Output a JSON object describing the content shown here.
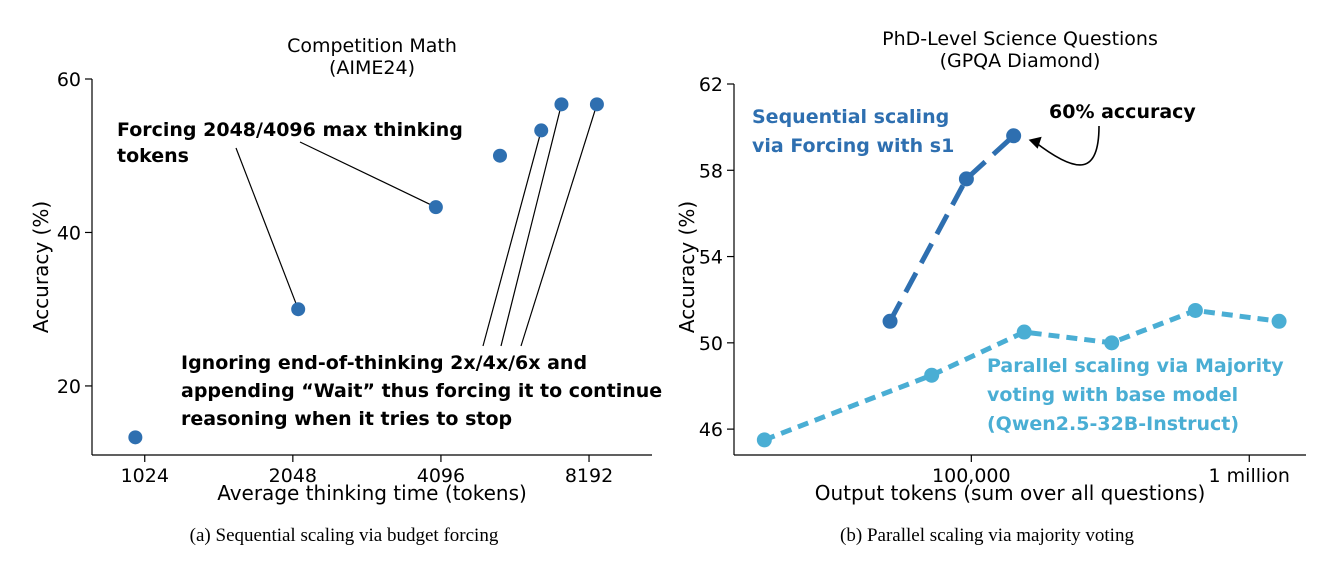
{
  "chart_data": [
    {
      "type": "scatter",
      "title": "Competition Math",
      "subtitle": "(AIME24)",
      "xlabel": "Average thinking time (tokens)",
      "ylabel": "Accuracy (%)",
      "x_scale": "log2",
      "x_ticks": [
        1024,
        2048,
        4096,
        8192
      ],
      "x_tick_labels": [
        "1024",
        "2048",
        "4096",
        "8192"
      ],
      "xlim": [
        800,
        11000
      ],
      "y_ticks": [
        20,
        40,
        60
      ],
      "y_tick_labels": [
        "20",
        "40",
        "60"
      ],
      "ylim": [
        11,
        60
      ],
      "grid": false,
      "color": "#2e6fb0",
      "series": [
        {
          "x": [
            980,
            2100,
            4000,
            5400,
            6550,
            7200,
            8500
          ],
          "y": [
            13.3,
            30.0,
            43.3,
            50.0,
            53.3,
            56.7,
            56.7
          ]
        }
      ],
      "annotations": [
        {
          "lines": [
            "Forcing 2048/4096 max thinking",
            "tokens"
          ],
          "points": [
            1,
            2
          ]
        },
        {
          "lines": [
            "Ignoring end-of-thinking 2x/4x/6x and",
            "appending “Wait” thus forcing it to continue",
            "reasoning when it tries to stop"
          ],
          "points": [
            4,
            5,
            6
          ]
        }
      ],
      "caption": "(a) Sequential scaling via budget forcing"
    },
    {
      "type": "line",
      "title": "PhD-Level Science Questions",
      "subtitle": "(GPQA Diamond)",
      "xlabel": "Output tokens (sum over all questions)",
      "ylabel": "Accuracy (%)",
      "x_scale": "log10",
      "x_ticks": [
        100000,
        1000000
      ],
      "x_tick_labels": [
        "100,000",
        "1 million"
      ],
      "xlim": [
        14000,
        1600000
      ],
      "y_ticks": [
        46,
        50,
        54,
        58,
        62
      ],
      "y_tick_labels": [
        "46",
        "50",
        "54",
        "58",
        "62"
      ],
      "ylim": [
        44.8,
        62
      ],
      "grid": false,
      "series": [
        {
          "name": "Sequential scaling via Forcing with s1",
          "label_lines": [
            "Sequential scaling",
            "via Forcing with s1"
          ],
          "color": "#2e6fb0",
          "dash": "long",
          "x": [
            51000,
            96000,
            142000
          ],
          "y": [
            51.0,
            57.6,
            59.6
          ]
        },
        {
          "name": "Parallel scaling via Majority voting with base model (Qwen2.5-32B-Instruct)",
          "label_lines": [
            "Parallel scaling via Majority",
            "voting with base model",
            "(Qwen2.5-32B-Instruct)"
          ],
          "color": "#4aaed4",
          "dash": "short",
          "x": [
            18000,
            72000,
            155000,
            320000,
            640000,
            1280000
          ],
          "y": [
            45.5,
            48.5,
            50.5,
            50.0,
            51.5,
            51.0
          ]
        }
      ],
      "annotations": [
        {
          "text": "60% accuracy",
          "series": 0,
          "point": 2
        }
      ],
      "caption": "(b) Parallel scaling via majority voting"
    }
  ]
}
